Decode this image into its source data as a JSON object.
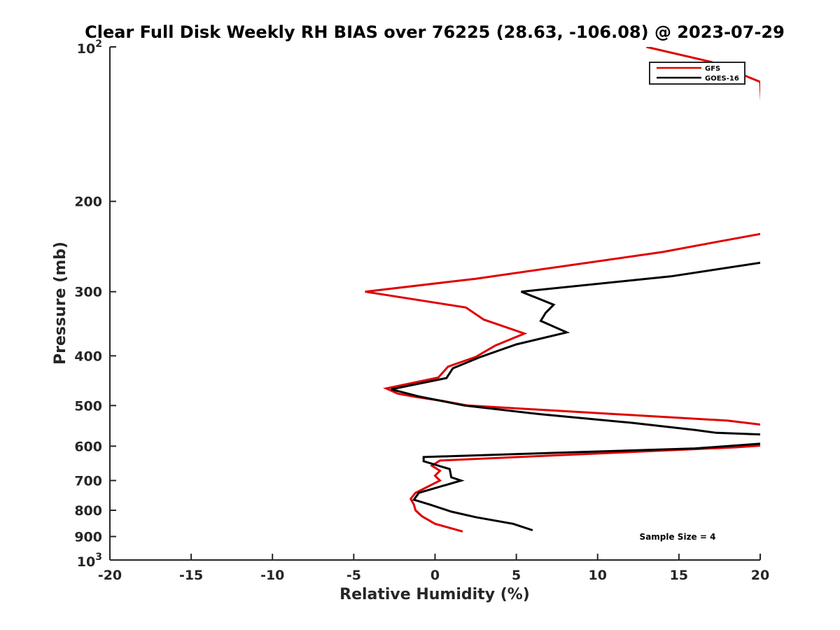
{
  "chart_data": {
    "type": "line",
    "title": "Clear Full Disk Weekly RH BIAS over 76225 (28.63, -106.08) @ 2023-07-29",
    "xlabel": "Relative Humidity (%)",
    "ylabel": "Pressure (mb)",
    "xlim": [
      -20,
      20
    ],
    "ylim": [
      100,
      1000
    ],
    "y_scale": "log",
    "y_reversed": true,
    "grid": false,
    "legend_position": "top-right",
    "x_ticks": [
      "-20",
      "-15",
      "-10",
      "-5",
      "0",
      "5",
      "10",
      "15",
      "20"
    ],
    "y_ticks": [
      {
        "value": 100,
        "base": "10",
        "exp": "2"
      },
      {
        "value": 200,
        "label": "200"
      },
      {
        "value": 300,
        "label": "300"
      },
      {
        "value": 400,
        "label": "400"
      },
      {
        "value": 500,
        "label": "500"
      },
      {
        "value": 600,
        "label": "600"
      },
      {
        "value": 700,
        "label": "700"
      },
      {
        "value": 800,
        "label": "800"
      },
      {
        "value": 900,
        "label": "900"
      },
      {
        "value": 1000,
        "base": "10",
        "exp": "3"
      }
    ],
    "annotation": "Sample Size = 4",
    "series": [
      {
        "name": "GFS",
        "color": "#e00000",
        "points": [
          [
            13,
            100
          ],
          [
            17,
            107
          ],
          [
            20,
            117
          ],
          [
            20.5,
            230
          ],
          [
            17.3,
            240
          ],
          [
            14,
            251
          ],
          [
            2.5,
            283
          ],
          [
            -4.3,
            300
          ],
          [
            1.9,
            322
          ],
          [
            3.0,
            340
          ],
          [
            5.5,
            362
          ],
          [
            3.7,
            382
          ],
          [
            2.5,
            402
          ],
          [
            0.8,
            420
          ],
          [
            0.2,
            441
          ],
          [
            -3.0,
            463
          ],
          [
            -2.3,
            474
          ],
          [
            -1.2,
            481
          ],
          [
            0.5,
            490
          ],
          [
            2,
            500
          ],
          [
            18,
            535
          ],
          [
            20.5,
            547
          ],
          [
            20.5,
            597
          ],
          [
            18.5,
            603
          ],
          [
            0.3,
            640
          ],
          [
            -0.2,
            655
          ],
          [
            0.3,
            670
          ],
          [
            0.0,
            685
          ],
          [
            0.3,
            700
          ],
          [
            -1.2,
            740
          ],
          [
            -1.5,
            760
          ],
          [
            -1.3,
            780
          ],
          [
            -1.2,
            800
          ],
          [
            -0.8,
            822
          ],
          [
            0.0,
            850
          ],
          [
            1.7,
            880
          ]
        ]
      },
      {
        "name": "GOES-16",
        "color": "#000000",
        "points": [
          [
            20.5,
            262
          ],
          [
            14.5,
            280
          ],
          [
            5.3,
            300
          ],
          [
            7.3,
            318
          ],
          [
            6.8,
            330
          ],
          [
            6.5,
            342
          ],
          [
            8.1,
            360
          ],
          [
            5.0,
            380
          ],
          [
            2.8,
            402
          ],
          [
            1.1,
            423
          ],
          [
            0.7,
            442
          ],
          [
            -2.7,
            465
          ],
          [
            -1.0,
            480
          ],
          [
            1.8,
            500
          ],
          [
            6.5,
            520
          ],
          [
            12,
            540
          ],
          [
            16,
            558
          ],
          [
            17.3,
            565
          ],
          [
            20.5,
            570
          ],
          [
            20.5,
            592
          ],
          [
            16.0,
            606
          ],
          [
            -0.7,
            630
          ],
          [
            -0.7,
            642
          ],
          [
            0.9,
            665
          ],
          [
            1.0,
            690
          ],
          [
            1.6,
            700
          ],
          [
            -1.0,
            740
          ],
          [
            -1.3,
            763
          ],
          [
            -0.3,
            780
          ],
          [
            1.0,
            805
          ],
          [
            2.5,
            825
          ],
          [
            4.8,
            850
          ],
          [
            6.0,
            875
          ]
        ]
      }
    ]
  }
}
